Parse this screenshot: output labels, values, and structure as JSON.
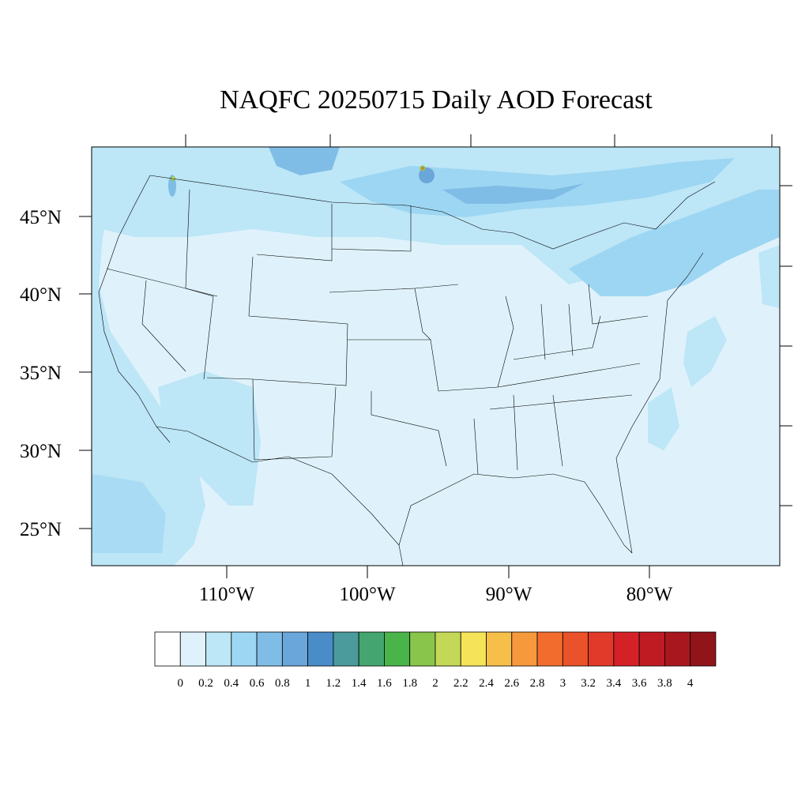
{
  "title": "NAQFC 20250715 Daily AOD Forecast",
  "map": {
    "lat_labels": [
      "45°N",
      "40°N",
      "35°N",
      "30°N",
      "25°N"
    ],
    "lon_labels": [
      "110°W",
      "100°W",
      "90°W",
      "80°W"
    ],
    "land_outline_color": "#000000",
    "fill_colors": {
      "background_aod": "#dff2fb",
      "low_aod": "#bde6f7",
      "medium_aod": "#9dd6f2",
      "high_aod": "#7fbde6",
      "very_high_aod": "#5ba3d9"
    }
  },
  "colorbar": {
    "colors": [
      "#ffffff",
      "#dff2fb",
      "#bde6f7",
      "#9dd6f2",
      "#7fbde6",
      "#6aa6da",
      "#4a8cc8",
      "#4b9a9c",
      "#45a570",
      "#49b44a",
      "#8ac54b",
      "#c4d858",
      "#f5e45a",
      "#f6bf4a",
      "#f6983c",
      "#f26d2d",
      "#ea522a",
      "#e23a2a",
      "#d42128",
      "#bf1b22",
      "#a9171e",
      "#90141a"
    ],
    "labels": [
      "0",
      "0.2",
      "0.4",
      "0.6",
      "0.8",
      "1",
      "1.2",
      "1.4",
      "1.6",
      "1.8",
      "2",
      "2.2",
      "2.4",
      "2.6",
      "2.8",
      "3",
      "3.2",
      "3.4",
      "3.6",
      "3.8",
      "4"
    ]
  }
}
